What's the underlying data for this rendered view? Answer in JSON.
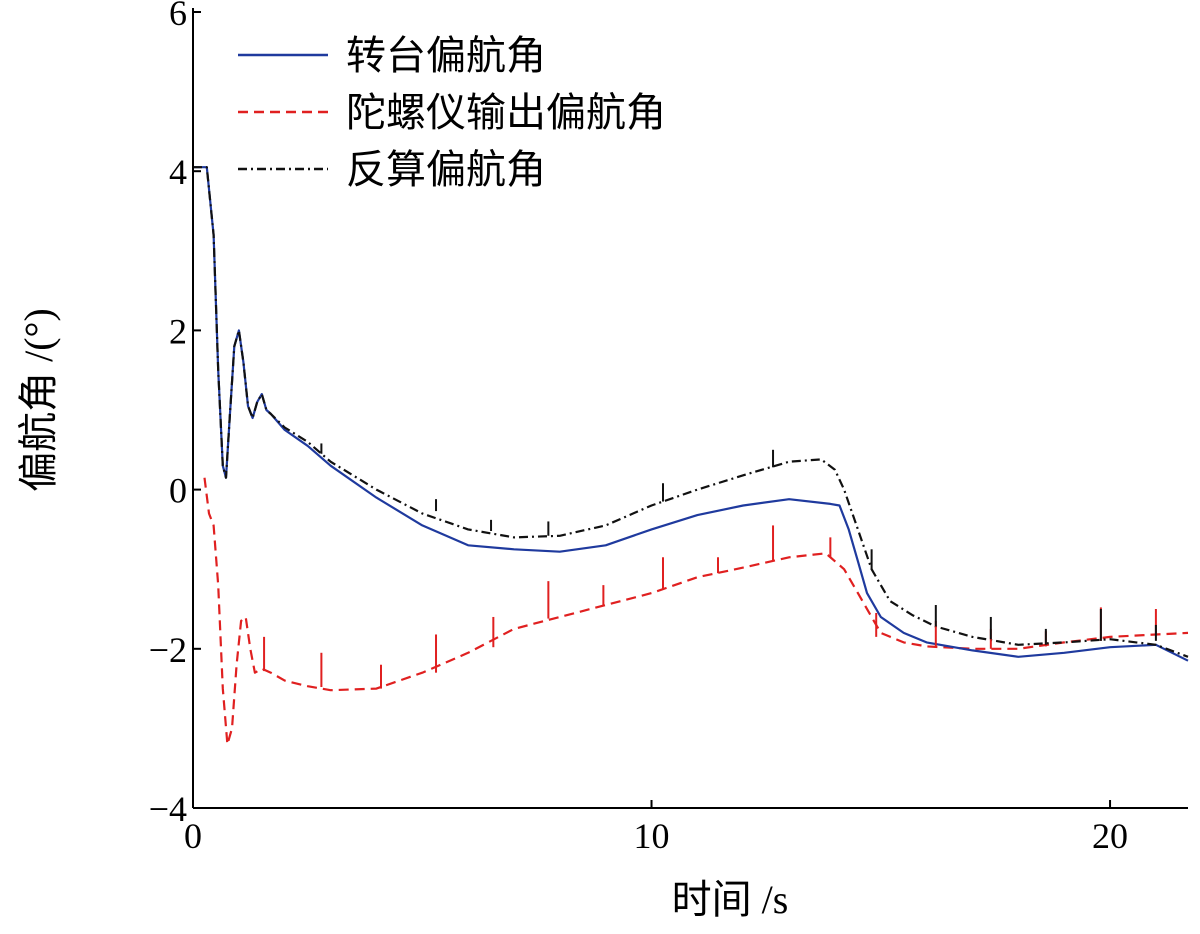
{
  "chart_data": {
    "type": "line",
    "title": "",
    "xlabel": "时间 /s",
    "ylabel": "偏航角 /(°)",
    "xlim": [
      0,
      21.7
    ],
    "ylim": [
      -4,
      6
    ],
    "xticks": [
      0,
      10,
      20
    ],
    "xtick_labels": [
      "0",
      "10",
      "20"
    ],
    "yticks": [
      -4,
      -2,
      0,
      2,
      4,
      6
    ],
    "ytick_labels": [
      "−4",
      "−2",
      "0",
      "2",
      "4",
      "6"
    ],
    "grid": false,
    "legend_position": "top-left",
    "series": [
      {
        "name": "转台偏航角",
        "color": "#1f3a9e",
        "style": "solid",
        "points": [
          [
            0,
            4.05
          ],
          [
            0.3,
            4.05
          ],
          [
            0.45,
            3.2
          ],
          [
            0.55,
            1.5
          ],
          [
            0.65,
            0.3
          ],
          [
            0.72,
            0.15
          ],
          [
            0.8,
            0.9
          ],
          [
            0.9,
            1.8
          ],
          [
            1.0,
            2.0
          ],
          [
            1.1,
            1.6
          ],
          [
            1.2,
            1.05
          ],
          [
            1.3,
            0.9
          ],
          [
            1.4,
            1.1
          ],
          [
            1.5,
            1.2
          ],
          [
            1.6,
            1.0
          ],
          [
            1.7,
            0.95
          ],
          [
            2.0,
            0.75
          ],
          [
            2.5,
            0.55
          ],
          [
            3.0,
            0.3
          ],
          [
            4.0,
            -0.1
          ],
          [
            5.0,
            -0.45
          ],
          [
            6.0,
            -0.7
          ],
          [
            7.0,
            -0.75
          ],
          [
            8.0,
            -0.78
          ],
          [
            9.0,
            -0.7
          ],
          [
            10.0,
            -0.5
          ],
          [
            11.0,
            -0.32
          ],
          [
            12.0,
            -0.2
          ],
          [
            13.0,
            -0.12
          ],
          [
            13.9,
            -0.18
          ],
          [
            14.1,
            -0.2
          ],
          [
            14.3,
            -0.5
          ],
          [
            14.5,
            -0.9
          ],
          [
            14.7,
            -1.3
          ],
          [
            15.0,
            -1.6
          ],
          [
            15.5,
            -1.8
          ],
          [
            16.0,
            -1.92
          ],
          [
            17.0,
            -2.02
          ],
          [
            18.0,
            -2.1
          ],
          [
            19.0,
            -2.05
          ],
          [
            20.0,
            -1.98
          ],
          [
            21.0,
            -1.95
          ],
          [
            21.7,
            -2.15
          ]
        ]
      },
      {
        "name": "陀螺仪输出偏航角",
        "color": "#e02020",
        "style": "dashed",
        "points": [
          [
            0.25,
            0.15
          ],
          [
            0.35,
            -0.3
          ],
          [
            0.45,
            -0.45
          ],
          [
            0.55,
            -1.2
          ],
          [
            0.65,
            -2.5
          ],
          [
            0.75,
            -3.2
          ],
          [
            0.85,
            -3.0
          ],
          [
            0.95,
            -2.2
          ],
          [
            1.05,
            -1.65
          ],
          [
            1.15,
            -1.6
          ],
          [
            1.25,
            -2.0
          ],
          [
            1.35,
            -2.3
          ],
          [
            1.5,
            -2.25
          ],
          [
            1.7,
            -2.3
          ],
          [
            2.0,
            -2.4
          ],
          [
            2.5,
            -2.47
          ],
          [
            3.0,
            -2.52
          ],
          [
            4.0,
            -2.5
          ],
          [
            5.0,
            -2.3
          ],
          [
            6.0,
            -2.05
          ],
          [
            7.0,
            -1.75
          ],
          [
            8.0,
            -1.6
          ],
          [
            9.0,
            -1.45
          ],
          [
            10.0,
            -1.3
          ],
          [
            11.0,
            -1.1
          ],
          [
            12.0,
            -0.98
          ],
          [
            13.0,
            -0.85
          ],
          [
            13.8,
            -0.8
          ],
          [
            14.2,
            -1.0
          ],
          [
            14.5,
            -1.3
          ],
          [
            14.8,
            -1.6
          ],
          [
            15.0,
            -1.8
          ],
          [
            15.5,
            -1.92
          ],
          [
            16.0,
            -1.97
          ],
          [
            17.0,
            -2.0
          ],
          [
            18.0,
            -2.0
          ],
          [
            19.0,
            -1.92
          ],
          [
            20.0,
            -1.85
          ],
          [
            21.0,
            -1.82
          ],
          [
            21.7,
            -1.8
          ]
        ]
      },
      {
        "name": "反算偏航角",
        "color": "#111111",
        "style": "dashdot",
        "points": [
          [
            0,
            4.05
          ],
          [
            0.3,
            4.05
          ],
          [
            0.45,
            3.2
          ],
          [
            0.55,
            1.5
          ],
          [
            0.65,
            0.3
          ],
          [
            0.72,
            0.15
          ],
          [
            0.8,
            0.9
          ],
          [
            0.9,
            1.8
          ],
          [
            1.0,
            2.0
          ],
          [
            1.1,
            1.6
          ],
          [
            1.2,
            1.05
          ],
          [
            1.3,
            0.9
          ],
          [
            1.4,
            1.1
          ],
          [
            1.5,
            1.2
          ],
          [
            1.6,
            1.0
          ],
          [
            1.7,
            0.95
          ],
          [
            2.0,
            0.78
          ],
          [
            2.5,
            0.6
          ],
          [
            3.0,
            0.35
          ],
          [
            4.0,
            0.0
          ],
          [
            5.0,
            -0.3
          ],
          [
            6.0,
            -0.5
          ],
          [
            7.0,
            -0.6
          ],
          [
            8.0,
            -0.58
          ],
          [
            9.0,
            -0.45
          ],
          [
            10.0,
            -0.2
          ],
          [
            11.0,
            0.0
          ],
          [
            12.0,
            0.18
          ],
          [
            13.0,
            0.35
          ],
          [
            13.7,
            0.38
          ],
          [
            14.0,
            0.25
          ],
          [
            14.2,
            0.0
          ],
          [
            14.5,
            -0.5
          ],
          [
            14.8,
            -1.0
          ],
          [
            15.2,
            -1.4
          ],
          [
            15.7,
            -1.58
          ],
          [
            16.2,
            -1.72
          ],
          [
            17.0,
            -1.85
          ],
          [
            18.0,
            -1.95
          ],
          [
            19.0,
            -1.92
          ],
          [
            20.0,
            -1.88
          ],
          [
            21.0,
            -1.95
          ],
          [
            21.7,
            -2.1
          ]
        ]
      }
    ],
    "spikes": [
      {
        "series": 1,
        "x": 1.55,
        "y0": -2.28,
        "y1": -1.85
      },
      {
        "series": 1,
        "x": 2.8,
        "y0": -2.48,
        "y1": -2.05
      },
      {
        "series": 1,
        "x": 4.1,
        "y0": -2.5,
        "y1": -2.2
      },
      {
        "series": 1,
        "x": 5.3,
        "y0": -2.3,
        "y1": -1.82
      },
      {
        "series": 1,
        "x": 6.55,
        "y0": -1.98,
        "y1": -1.6
      },
      {
        "series": 1,
        "x": 7.75,
        "y0": -1.62,
        "y1": -1.15
      },
      {
        "series": 1,
        "x": 8.95,
        "y0": -1.45,
        "y1": -1.2
      },
      {
        "series": 1,
        "x": 10.25,
        "y0": -1.26,
        "y1": -0.85
      },
      {
        "series": 1,
        "x": 11.45,
        "y0": -1.05,
        "y1": -0.85
      },
      {
        "series": 1,
        "x": 12.65,
        "y0": -0.9,
        "y1": -0.45
      },
      {
        "series": 1,
        "x": 13.9,
        "y0": -0.85,
        "y1": -0.6
      },
      {
        "series": 1,
        "x": 14.9,
        "y0": -1.85,
        "y1": -1.55
      },
      {
        "series": 1,
        "x": 16.2,
        "y0": -1.97,
        "y1": -1.65
      },
      {
        "series": 1,
        "x": 17.4,
        "y0": -2.0,
        "y1": -1.75
      },
      {
        "series": 1,
        "x": 18.6,
        "y0": -1.97,
        "y1": -1.78
      },
      {
        "series": 1,
        "x": 19.8,
        "y0": -1.9,
        "y1": -1.48
      },
      {
        "series": 1,
        "x": 21.0,
        "y0": -1.83,
        "y1": -1.5
      },
      {
        "series": 2,
        "x": 2.8,
        "y0": 0.45,
        "y1": 0.58
      },
      {
        "series": 2,
        "x": 5.3,
        "y0": -0.27,
        "y1": -0.12
      },
      {
        "series": 2,
        "x": 6.5,
        "y0": -0.52,
        "y1": -0.38
      },
      {
        "series": 2,
        "x": 7.75,
        "y0": -0.58,
        "y1": -0.4
      },
      {
        "series": 2,
        "x": 10.25,
        "y0": -0.15,
        "y1": 0.08
      },
      {
        "series": 2,
        "x": 12.65,
        "y0": 0.28,
        "y1": 0.5
      },
      {
        "series": 2,
        "x": 14.8,
        "y0": -1.0,
        "y1": -0.75
      },
      {
        "series": 2,
        "x": 16.2,
        "y0": -1.72,
        "y1": -1.45
      },
      {
        "series": 2,
        "x": 17.4,
        "y0": -1.88,
        "y1": -1.6
      },
      {
        "series": 2,
        "x": 18.6,
        "y0": -1.95,
        "y1": -1.75
      },
      {
        "series": 2,
        "x": 19.8,
        "y0": -1.9,
        "y1": -1.5
      },
      {
        "series": 2,
        "x": 21.0,
        "y0": -1.9,
        "y1": -1.7
      }
    ]
  }
}
